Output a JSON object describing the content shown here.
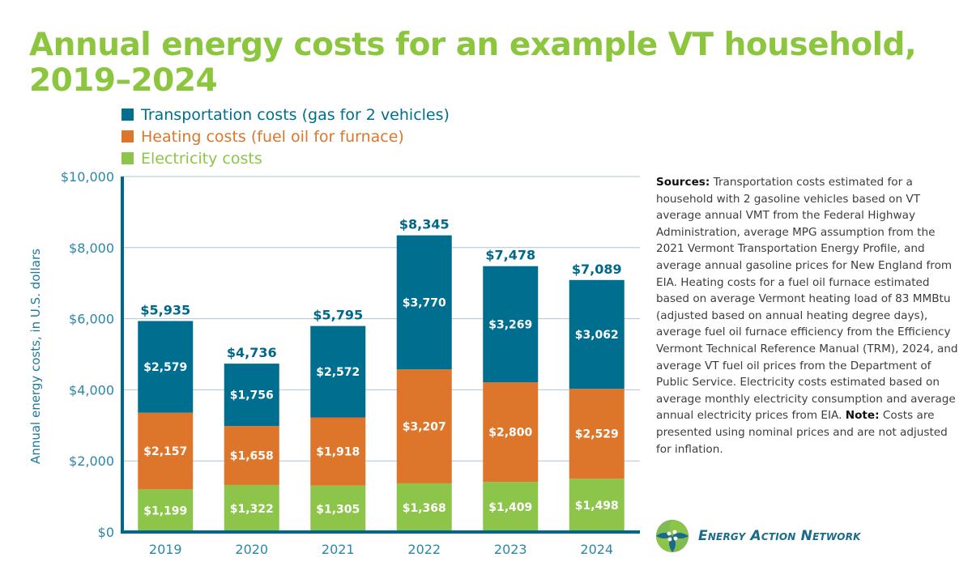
{
  "title": "Annual energy costs for an example VT household, 2019–2024",
  "colors": {
    "transportation": "#006e8f",
    "heating": "#dd762b",
    "electricity": "#8dc54b",
    "title": "#8cc63f",
    "axis": "#00688a",
    "tick_text": "#2b87a6",
    "grid": "#a9c7d6"
  },
  "legend": [
    {
      "key": "transportation",
      "label": "Transportation costs (gas for 2 vehicles)",
      "color": "#006e8f"
    },
    {
      "key": "heating",
      "label": "Heating costs (fuel oil for furnace)",
      "color": "#dd762b"
    },
    {
      "key": "electricity",
      "label": "Electricity costs",
      "color": "#8dc54b"
    }
  ],
  "sources": {
    "sources_label": "Sources:",
    "sources_text": " Transportation costs estimated for a household with 2 gasoline vehicles based on VT average annual VMT from the Federal Highway Administration, average MPG assumption from the 2021 Vermont Transportation Energy Profile, and average annual gasoline prices for New England from EIA. Heating costs for a fuel oil furnace estimated based on average Vermont heating load of 83 MMBtu (adjusted based on annual heating degree days), average fuel oil furnace efficiency from the Efficiency Vermont Technical Reference Manual (TRM), 2024, and average VT fuel oil prices from the Department of Public Service. Electricity costs estimated based on average monthly electricity consumption and average annual electricity prices from EIA. ",
    "note_label": "Note:",
    "note_text": " Costs are presented using nominal prices and are not adjusted for inflation."
  },
  "logo": {
    "text": "Energy Action Network",
    "icon": "ean-pinwheel-logo-icon"
  },
  "chart_data": {
    "type": "bar",
    "stacked": true,
    "title": "Annual energy costs for an example VT household, 2019–2024",
    "xlabel": "",
    "ylabel": "Annual energy costs, in U.S. dollars",
    "ylim": [
      0,
      10000
    ],
    "yticks": [
      0,
      2000,
      4000,
      6000,
      8000,
      10000
    ],
    "ytick_labels": [
      "$0",
      "$2,000",
      "$4,000",
      "$6,000",
      "$8,000",
      "$10,000"
    ],
    "grid": true,
    "legend_position": "top-left",
    "categories": [
      "2019",
      "2020",
      "2021",
      "2022",
      "2023",
      "2024"
    ],
    "series": [
      {
        "name": "Electricity costs",
        "key": "electricity",
        "values": [
          1199,
          1322,
          1305,
          1368,
          1409,
          1498
        ],
        "labels": [
          "$1,199",
          "$1,322",
          "$1,305",
          "$1,368",
          "$1,409",
          "$1,498"
        ]
      },
      {
        "name": "Heating costs (fuel oil for furnace)",
        "key": "heating",
        "values": [
          2157,
          1658,
          1918,
          3207,
          2800,
          2529
        ],
        "labels": [
          "$2,157",
          "$1,658",
          "$1,918",
          "$3,207",
          "$2,800",
          "$2,529"
        ]
      },
      {
        "name": "Transportation costs (gas for 2 vehicles)",
        "key": "transportation",
        "values": [
          2579,
          1756,
          2572,
          3770,
          3269,
          3062
        ],
        "labels": [
          "$2,579",
          "$1,756",
          "$2,572",
          "$3,770",
          "$3,269",
          "$3,062"
        ]
      }
    ],
    "totals": [
      5935,
      4736,
      5795,
      8345,
      7478,
      7089
    ],
    "total_labels": [
      "$5,935",
      "$4,736",
      "$5,795",
      "$8,345",
      "$7,478",
      "$7,089"
    ]
  }
}
